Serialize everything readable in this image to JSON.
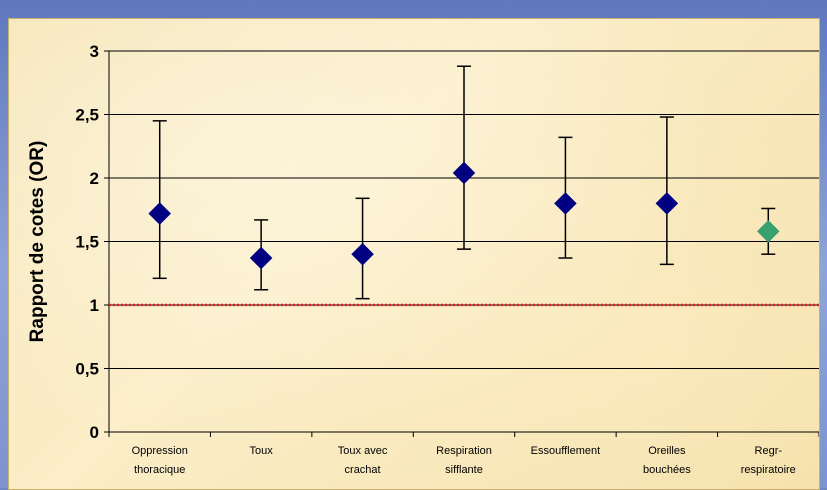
{
  "chart_data": {
    "type": "scatter",
    "ylabel": "Rapport de cotes (OR)",
    "xlabel": "",
    "title": "",
    "ylim": [
      0,
      3
    ],
    "yticks": [
      "0",
      "0,5",
      "1",
      "1,5",
      "2",
      "2,5",
      "3"
    ],
    "ytick_values": [
      0,
      0.5,
      1,
      1.5,
      2,
      2.5,
      3
    ],
    "grid": "horizontal",
    "reference_line": {
      "value": 1,
      "color": "#e02020",
      "style": "dotted"
    },
    "categories": [
      [
        "Oppression",
        "thoracique"
      ],
      [
        "Toux"
      ],
      [
        "Toux avec",
        "crachat"
      ],
      [
        "Respiration",
        "sifflante"
      ],
      [
        "Essoufflement"
      ],
      [
        "Oreilles",
        "bouchées"
      ],
      [
        "Regr-",
        "respiratoire"
      ]
    ],
    "points": [
      {
        "or": 1.72,
        "low": 1.21,
        "high": 2.45,
        "color": "#000080"
      },
      {
        "or": 1.37,
        "low": 1.12,
        "high": 1.67,
        "color": "#000080"
      },
      {
        "or": 1.4,
        "low": 1.05,
        "high": 1.84,
        "color": "#000080"
      },
      {
        "or": 2.04,
        "low": 1.44,
        "high": 2.88,
        "color": "#000080"
      },
      {
        "or": 1.8,
        "low": 1.37,
        "high": 2.32,
        "color": "#000080"
      },
      {
        "or": 1.8,
        "low": 1.32,
        "high": 2.48,
        "color": "#000080"
      },
      {
        "or": 1.58,
        "low": 1.4,
        "high": 1.76,
        "color": "#3aa070"
      }
    ]
  }
}
